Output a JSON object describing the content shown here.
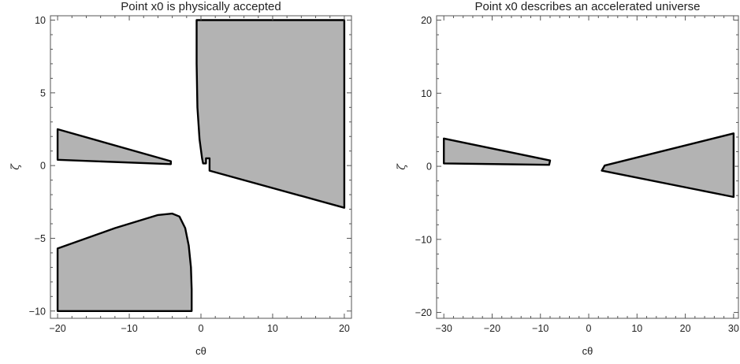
{
  "chart_data": [
    {
      "type": "region",
      "title": "Point x0 is physically accepted",
      "xlabel": "cθ",
      "ylabel": "ζ",
      "xlim": [
        -21,
        21
      ],
      "ylim": [
        -10.5,
        10.3
      ],
      "xticks": [
        -20,
        -10,
        0,
        10,
        20
      ],
      "xtick_labels": [
        "−20",
        "−10",
        "0",
        "10",
        "20"
      ],
      "yticks": [
        -10,
        -5,
        0,
        5,
        10
      ],
      "ytick_labels": [
        "−10",
        "−5",
        "0",
        "5",
        "10"
      ],
      "fill_color": "#b3b3b3",
      "edge_color": "#000000",
      "regions": [
        [
          [
            -20,
            2.5
          ],
          [
            -4.2,
            0.3
          ],
          [
            -4.2,
            0.1
          ],
          [
            -20,
            0.4
          ]
        ],
        [
          [
            -20,
            -5.7
          ],
          [
            -12,
            -4.3
          ],
          [
            -6,
            -3.4
          ],
          [
            -4,
            -3.3
          ],
          [
            -3,
            -3.5
          ],
          [
            -2.2,
            -4.3
          ],
          [
            -1.7,
            -5.5
          ],
          [
            -1.4,
            -7
          ],
          [
            -1.3,
            -8.5
          ],
          [
            -1.3,
            -10
          ],
          [
            -20,
            -10
          ]
        ],
        [
          [
            -0.6,
            10
          ],
          [
            20,
            10
          ],
          [
            20,
            -2.9
          ],
          [
            1.2,
            -0.35
          ],
          [
            1.2,
            0.5
          ],
          [
            0.7,
            0.5
          ],
          [
            0.7,
            0.15
          ],
          [
            0.3,
            0.15
          ],
          [
            0.15,
            0.5
          ],
          [
            -0.2,
            1.8
          ],
          [
            -0.5,
            4
          ],
          [
            -0.6,
            7
          ]
        ]
      ]
    },
    {
      "type": "region",
      "title": "Point x0 describes an accelerated universe",
      "xlabel": "cθ",
      "ylabel": "ζ",
      "xlim": [
        -31.5,
        31
      ],
      "ylim": [
        -20.8,
        20.6
      ],
      "xticks": [
        -30,
        -20,
        -10,
        0,
        10,
        20,
        30
      ],
      "xtick_labels": [
        "−30",
        "−20",
        "−10",
        "0",
        "10",
        "20",
        "30"
      ],
      "yticks": [
        -20,
        -10,
        0,
        10,
        20
      ],
      "ytick_labels": [
        "−20",
        "−10",
        "0",
        "10",
        "20"
      ],
      "fill_color": "#b3b3b3",
      "edge_color": "#000000",
      "regions": [
        [
          [
            -30,
            3.8
          ],
          [
            -8,
            0.8
          ],
          [
            -8.2,
            0.2
          ],
          [
            -30,
            0.4
          ]
        ],
        [
          [
            30,
            4.5
          ],
          [
            30,
            -4.2
          ],
          [
            2.7,
            -0.6
          ],
          [
            3.3,
            0.1
          ]
        ]
      ]
    }
  ]
}
